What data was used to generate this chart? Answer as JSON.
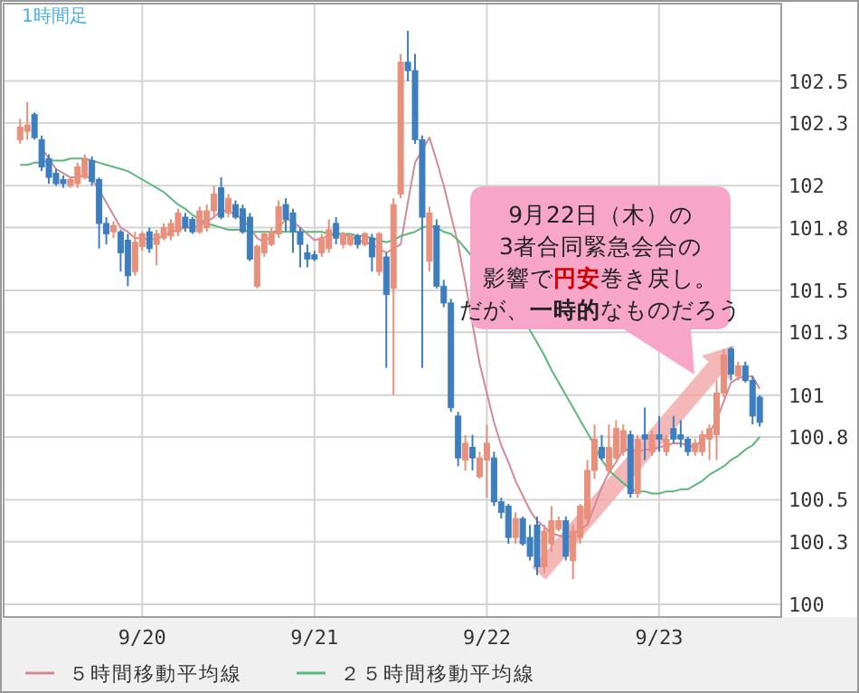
{
  "chart_data": {
    "type": "candlestick",
    "categories": [
      null,
      null,
      null,
      null,
      null,
      null,
      null,
      null,
      null,
      null,
      null,
      null,
      null,
      null,
      null,
      null,
      null,
      "9/20",
      null,
      null,
      null,
      null,
      null,
      null,
      null,
      null,
      null,
      null,
      null,
      null,
      null,
      null,
      null,
      null,
      null,
      null,
      null,
      null,
      null,
      null,
      null,
      "9/21",
      null,
      null,
      null,
      null,
      null,
      null,
      null,
      null,
      null,
      null,
      null,
      null,
      null,
      null,
      null,
      null,
      null,
      null,
      null,
      null,
      null,
      null,
      null,
      "9/22",
      null,
      null,
      null,
      null,
      null,
      null,
      null,
      null,
      null,
      null,
      null,
      null,
      null,
      null,
      null,
      null,
      null,
      null,
      null,
      null,
      null,
      null,
      null,
      "9/23",
      null,
      null,
      null,
      null,
      null,
      null,
      null,
      null,
      null,
      null,
      null,
      null,
      null,
      null
    ],
    "ohlc": [
      [
        102.22,
        102.32,
        102.2,
        102.28
      ],
      [
        102.26,
        102.4,
        102.22,
        102.29
      ],
      [
        102.34,
        102.35,
        102.22,
        102.23
      ],
      [
        102.22,
        102.24,
        102.07,
        102.09
      ],
      [
        102.13,
        102.15,
        102.01,
        102.04
      ],
      [
        102.06,
        102.08,
        102.0,
        102.01
      ],
      [
        102.03,
        102.05,
        101.99,
        102.01
      ],
      [
        102.0,
        102.04,
        101.99,
        102.03
      ],
      [
        102.01,
        102.11,
        101.99,
        102.09
      ],
      [
        102.04,
        102.15,
        102.03,
        102.13
      ],
      [
        102.12,
        102.14,
        102.0,
        102.02
      ],
      [
        102.03,
        102.04,
        101.7,
        101.82
      ],
      [
        101.82,
        101.85,
        101.72,
        101.77
      ],
      [
        101.78,
        101.83,
        101.75,
        101.81
      ],
      [
        101.78,
        101.79,
        101.59,
        101.68
      ],
      [
        101.74,
        101.77,
        101.52,
        101.57
      ],
      [
        101.59,
        101.78,
        101.57,
        101.73
      ],
      [
        101.71,
        101.78,
        101.69,
        101.77
      ],
      [
        101.78,
        101.8,
        101.68,
        101.7
      ],
      [
        101.72,
        101.79,
        101.62,
        101.77
      ],
      [
        101.75,
        101.82,
        101.74,
        101.8
      ],
      [
        101.76,
        101.84,
        101.74,
        101.82
      ],
      [
        101.78,
        101.89,
        101.76,
        101.87
      ],
      [
        101.85,
        101.87,
        101.78,
        101.8
      ],
      [
        101.84,
        101.85,
        101.77,
        101.78
      ],
      [
        101.78,
        101.9,
        101.77,
        101.88
      ],
      [
        101.8,
        101.91,
        101.78,
        101.88
      ],
      [
        101.88,
        102.0,
        101.85,
        101.96
      ],
      [
        101.99,
        102.04,
        101.84,
        101.85
      ],
      [
        101.87,
        101.96,
        101.85,
        101.94
      ],
      [
        101.91,
        101.93,
        101.84,
        101.85
      ],
      [
        101.89,
        101.91,
        101.77,
        101.78
      ],
      [
        101.85,
        101.87,
        101.64,
        101.65
      ],
      [
        101.52,
        101.72,
        101.51,
        101.71
      ],
      [
        101.68,
        101.78,
        101.66,
        101.77
      ],
      [
        101.72,
        101.8,
        101.71,
        101.78
      ],
      [
        101.77,
        101.93,
        101.75,
        101.9
      ],
      [
        101.91,
        101.94,
        101.78,
        101.84
      ],
      [
        101.87,
        101.89,
        101.68,
        101.78
      ],
      [
        101.78,
        101.8,
        101.61,
        101.72
      ],
      [
        101.68,
        101.72,
        101.61,
        101.65
      ],
      [
        101.67,
        101.69,
        101.64,
        101.65
      ],
      [
        101.68,
        101.77,
        101.66,
        101.75
      ],
      [
        101.7,
        101.84,
        101.68,
        101.79
      ],
      [
        101.82,
        101.85,
        101.72,
        101.75
      ],
      [
        101.72,
        101.78,
        101.7,
        101.77
      ],
      [
        101.72,
        101.77,
        101.71,
        101.76
      ],
      [
        101.76,
        101.77,
        101.7,
        101.72
      ],
      [
        101.72,
        101.78,
        101.71,
        101.77
      ],
      [
        101.75,
        101.77,
        101.59,
        101.66
      ],
      [
        101.59,
        101.78,
        101.57,
        101.77
      ],
      [
        101.66,
        101.68,
        101.13,
        101.48
      ],
      [
        101.51,
        101.94,
        101.0,
        101.91
      ],
      [
        101.96,
        102.63,
        101.94,
        102.59
      ],
      [
        102.59,
        102.74,
        102.5,
        102.55
      ],
      [
        102.55,
        102.63,
        102.2,
        102.22
      ],
      [
        102.22,
        102.24,
        101.13,
        101.85
      ],
      [
        101.64,
        101.9,
        101.59,
        101.87
      ],
      [
        101.81,
        101.84,
        101.51,
        101.52
      ],
      [
        101.52,
        101.55,
        101.42,
        101.44
      ],
      [
        101.44,
        101.46,
        100.92,
        100.94
      ],
      [
        100.9,
        100.92,
        100.66,
        100.7
      ],
      [
        100.69,
        100.81,
        100.64,
        100.77
      ],
      [
        100.75,
        100.81,
        100.64,
        100.7
      ],
      [
        100.61,
        100.73,
        100.6,
        100.7
      ],
      [
        100.69,
        100.86,
        100.51,
        100.77
      ],
      [
        100.7,
        100.73,
        100.47,
        100.49
      ],
      [
        100.49,
        100.51,
        100.41,
        100.44
      ],
      [
        100.47,
        100.48,
        100.29,
        100.32
      ],
      [
        100.32,
        100.44,
        100.29,
        100.41
      ],
      [
        100.41,
        100.42,
        100.28,
        100.29
      ],
      [
        100.32,
        100.38,
        100.21,
        100.23
      ],
      [
        100.38,
        100.42,
        100.14,
        100.18
      ],
      [
        100.18,
        100.38,
        100.15,
        100.35
      ],
      [
        100.29,
        100.47,
        100.25,
        100.4
      ],
      [
        100.36,
        100.42,
        100.35,
        100.4
      ],
      [
        100.4,
        100.42,
        100.21,
        100.23
      ],
      [
        100.21,
        100.38,
        100.12,
        100.35
      ],
      [
        100.32,
        100.48,
        100.29,
        100.47
      ],
      [
        100.41,
        100.69,
        100.38,
        100.64
      ],
      [
        100.64,
        100.86,
        100.6,
        100.79
      ],
      [
        100.75,
        100.81,
        100.69,
        100.7
      ],
      [
        100.64,
        100.86,
        100.62,
        100.75
      ],
      [
        100.7,
        100.88,
        100.69,
        100.84
      ],
      [
        100.73,
        100.86,
        100.71,
        100.83
      ],
      [
        100.81,
        100.83,
        100.51,
        100.53
      ],
      [
        100.53,
        100.81,
        100.51,
        100.79
      ],
      [
        100.81,
        100.94,
        100.69,
        100.79
      ],
      [
        100.73,
        100.83,
        100.71,
        100.81
      ],
      [
        100.81,
        100.9,
        100.73,
        100.79
      ],
      [
        100.73,
        100.81,
        100.71,
        100.79
      ],
      [
        100.84,
        100.9,
        100.77,
        100.79
      ],
      [
        100.81,
        100.88,
        100.75,
        100.79
      ],
      [
        100.79,
        100.8,
        100.71,
        100.73
      ],
      [
        100.73,
        100.79,
        100.71,
        100.77
      ],
      [
        100.73,
        100.83,
        100.71,
        100.81
      ],
      [
        100.79,
        100.86,
        100.69,
        100.84
      ],
      [
        100.81,
        101.07,
        100.69,
        101.01
      ],
      [
        101.01,
        101.22,
        100.99,
        101.19
      ],
      [
        101.22,
        101.23,
        101.07,
        101.1
      ],
      [
        101.09,
        101.16,
        101.07,
        101.14
      ],
      [
        101.14,
        101.16,
        101.06,
        101.07
      ],
      [
        101.07,
        101.09,
        100.86,
        100.9
      ],
      [
        100.99,
        101.0,
        100.85,
        100.87
      ]
    ],
    "colors": [
      "#e8907c",
      "#e8907c",
      "#3d7ebf",
      "#3d7ebf",
      "#3d7ebf",
      "#3d7ebf",
      "#3d7ebf",
      "#e8907c",
      "#e8907c",
      "#e8907c",
      "#3d7ebf",
      "#3d7ebf",
      "#3d7ebf",
      "#e8907c",
      "#3d7ebf",
      "#3d7ebf",
      "#e8907c",
      "#e8907c",
      "#3d7ebf",
      "#e8907c",
      "#e8907c",
      "#e8907c",
      "#e8907c",
      "#3d7ebf",
      "#3d7ebf",
      "#e8907c",
      "#e8907c",
      "#e8907c",
      "#3d7ebf",
      "#e8907c",
      "#3d7ebf",
      "#3d7ebf",
      "#3d7ebf",
      "#e8907c",
      "#e8907c",
      "#e8907c",
      "#e8907c",
      "#3d7ebf",
      "#3d7ebf",
      "#3d7ebf",
      "#3d7ebf",
      "#3d7ebf",
      "#e8907c",
      "#e8907c",
      "#3d7ebf",
      "#e8907c",
      "#e8907c",
      "#3d7ebf",
      "#e8907c",
      "#3d7ebf",
      "#e8907c",
      "#3d7ebf",
      "#e8907c",
      "#e8907c",
      "#3d7ebf",
      "#3d7ebf",
      "#3d7ebf",
      "#e8907c",
      "#3d7ebf",
      "#3d7ebf",
      "#3d7ebf",
      "#3d7ebf",
      "#e8907c",
      "#3d7ebf",
      "#e8907c",
      "#e8907c",
      "#3d7ebf",
      "#3d7ebf",
      "#3d7ebf",
      "#e8907c",
      "#3d7ebf",
      "#3d7ebf",
      "#3d7ebf",
      "#e8907c",
      "#e8907c",
      "#e8907c",
      "#3d7ebf",
      "#e8907c",
      "#e8907c",
      "#e8907c",
      "#e8907c",
      "#3d7ebf",
      "#e8907c",
      "#e8907c",
      "#e8907c",
      "#3d7ebf",
      "#e8907c",
      "#3d7ebf",
      "#e8907c",
      "#3d7ebf",
      "#e8907c",
      "#3d7ebf",
      "#3d7ebf",
      "#3d7ebf",
      "#e8907c",
      "#e8907c",
      "#e8907c",
      "#e8907c",
      "#e8907c",
      "#3d7ebf",
      "#e8907c",
      "#3d7ebf",
      "#3d7ebf",
      "#3d7ebf"
    ],
    "series": [
      {
        "name": "５時間移動平均線",
        "type": "line",
        "color": "#d48a96",
        "values": [
          null,
          null,
          null,
          102.18,
          102.13,
          102.08,
          102.06,
          102.04,
          102.04,
          102.05,
          102.03,
          101.98,
          101.92,
          101.86,
          101.8,
          101.78,
          101.75,
          101.75,
          101.74,
          101.75,
          101.76,
          101.78,
          101.79,
          101.8,
          101.8,
          101.81,
          101.83,
          101.85,
          101.88,
          101.88,
          101.86,
          101.84,
          101.8,
          101.75,
          101.73,
          101.76,
          101.8,
          101.84,
          101.83,
          101.8,
          101.77,
          101.74,
          101.75,
          101.76,
          101.77,
          101.77,
          101.76,
          101.74,
          101.73,
          101.72,
          101.7,
          101.68,
          101.7,
          101.72,
          101.92,
          102.11,
          102.17,
          102.23,
          102.12,
          102.0,
          101.86,
          101.72,
          101.54,
          101.34,
          101.15,
          101.01,
          100.87,
          100.76,
          100.68,
          100.59,
          100.52,
          100.45,
          100.4,
          100.37,
          100.34,
          100.33,
          100.32,
          100.33,
          100.36,
          100.38,
          100.47,
          100.56,
          100.63,
          100.68,
          100.74,
          100.74,
          100.73,
          100.74,
          100.74,
          100.75,
          100.76,
          100.77,
          100.77,
          100.76,
          100.75,
          100.79,
          100.82,
          100.88,
          100.97,
          101.06,
          101.08,
          101.09,
          101.09,
          101.03
        ]
      },
      {
        "name": "２５時間移動平均線",
        "type": "line",
        "color": "#5cb87a",
        "values": [
          102.1,
          102.1,
          102.11,
          102.11,
          102.12,
          102.12,
          102.12,
          102.13,
          102.13,
          102.13,
          102.12,
          102.11,
          102.1,
          102.09,
          102.08,
          102.07,
          102.05,
          102.03,
          102.01,
          101.99,
          101.97,
          101.94,
          101.91,
          101.89,
          101.86,
          101.84,
          101.82,
          101.81,
          101.8,
          101.79,
          101.79,
          101.79,
          101.78,
          101.78,
          101.78,
          101.78,
          101.78,
          101.78,
          101.78,
          101.78,
          101.78,
          101.78,
          101.78,
          101.77,
          101.77,
          101.77,
          101.77,
          101.76,
          101.76,
          101.75,
          101.74,
          101.73,
          101.74,
          101.76,
          101.77,
          101.78,
          101.8,
          101.81,
          101.8,
          101.78,
          101.77,
          101.74,
          101.7,
          101.66,
          null,
          null,
          null,
          null,
          null,
          null,
          null,
          101.31,
          101.25,
          101.19,
          101.12,
          101.06,
          101.0,
          100.94,
          100.88,
          100.82,
          100.76,
          100.69,
          100.64,
          100.61,
          100.58,
          100.55,
          100.54,
          100.54,
          100.53,
          100.53,
          100.54,
          100.54,
          100.55,
          100.55,
          100.57,
          100.59,
          100.62,
          100.64,
          100.66,
          100.69,
          100.71,
          100.74,
          100.76,
          100.8
        ]
      }
    ],
    "ylim": [
      99.94,
      102.87
    ],
    "yticks": [
      100,
      100.3,
      100.5,
      100.8,
      101,
      101.3,
      101.5,
      101.8,
      102,
      102.3,
      102.5
    ],
    "grid": true,
    "legend": "bottom",
    "annotations": [
      "1時間足",
      "9月22日（木）の",
      "3者合同緊急会合の",
      "影響で**円安**巻き戻し。",
      "だが、**一時的**なものだろう"
    ]
  }
}
